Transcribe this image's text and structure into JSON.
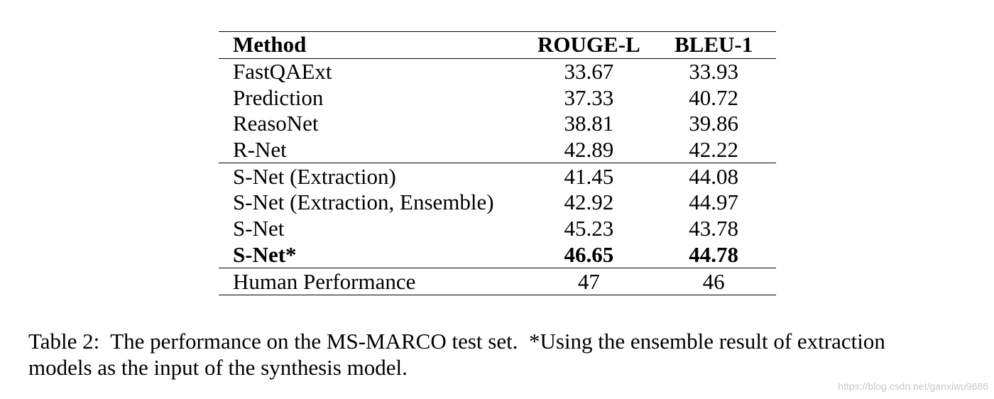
{
  "table": {
    "headers": {
      "method": "Method",
      "rouge": "ROUGE-L",
      "bleu": "BLEU-1"
    },
    "rows": [
      {
        "method": "FastQAExt",
        "rouge": "33.67",
        "bleu": "33.93",
        "bold": false
      },
      {
        "method": "Prediction",
        "rouge": "37.33",
        "bleu": "40.72",
        "bold": false
      },
      {
        "method": "ReasoNet",
        "rouge": "38.81",
        "bleu": "39.86",
        "bold": false
      },
      {
        "method": "R-Net",
        "rouge": "42.89",
        "bleu": "42.22",
        "bold": false
      },
      {
        "method": "S-Net (Extraction)",
        "rouge": "41.45",
        "bleu": "44.08",
        "bold": false
      },
      {
        "method": "S-Net (Extraction, Ensemble)",
        "rouge": "42.92",
        "bleu": "44.97",
        "bold": false
      },
      {
        "method": "S-Net",
        "rouge": "45.23",
        "bleu": "43.78",
        "bold": false
      },
      {
        "method": "S-Net*",
        "rouge": "46.65",
        "bleu": "44.78",
        "bold": true
      },
      {
        "method": "Human Performance",
        "rouge": "47",
        "bleu": "46",
        "bold": false
      }
    ]
  },
  "caption": {
    "line1": "Table 2:  The performance on the MS-MARCO test set.  *Using the ensemble result of extraction",
    "line2": "models as the input of the synthesis model."
  },
  "watermark": "https://blog.csdn.net/ganxiwu9686"
}
